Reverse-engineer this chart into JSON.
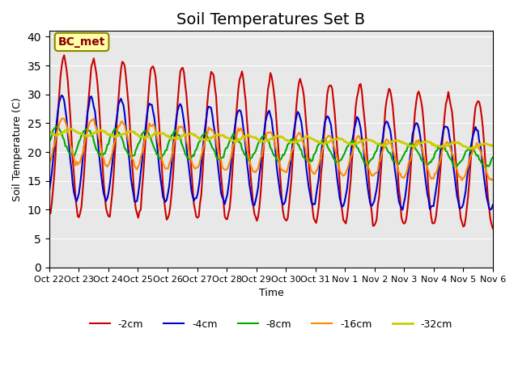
{
  "title": "Soil Temperatures Set B",
  "xlabel": "Time",
  "ylabel": "Soil Temperature (C)",
  "ylim": [
    0,
    41
  ],
  "yticks": [
    0,
    5,
    10,
    15,
    20,
    25,
    30,
    35,
    40
  ],
  "x_labels": [
    "Oct 22",
    "Oct 23",
    "Oct 24",
    "Oct 25",
    "Oct 26",
    "Oct 27",
    "Oct 28",
    "Oct 29",
    "Oct 30",
    "Oct 31",
    "Nov 1",
    "Nov 2",
    "Nov 3",
    "Nov 4",
    "Nov 5",
    "Nov 6"
  ],
  "annotation": "BC_met",
  "legend_entries": [
    "-2cm",
    "-4cm",
    "-8cm",
    "-16cm",
    "-32cm"
  ],
  "line_colors": [
    "#cc0000",
    "#0000cc",
    "#00aa00",
    "#ff8800",
    "#cccc00"
  ],
  "line_widths": [
    1.5,
    1.5,
    1.5,
    1.5,
    2.0
  ],
  "background_color": "#e8e8e8",
  "title_fontsize": 14,
  "n_days": 15
}
